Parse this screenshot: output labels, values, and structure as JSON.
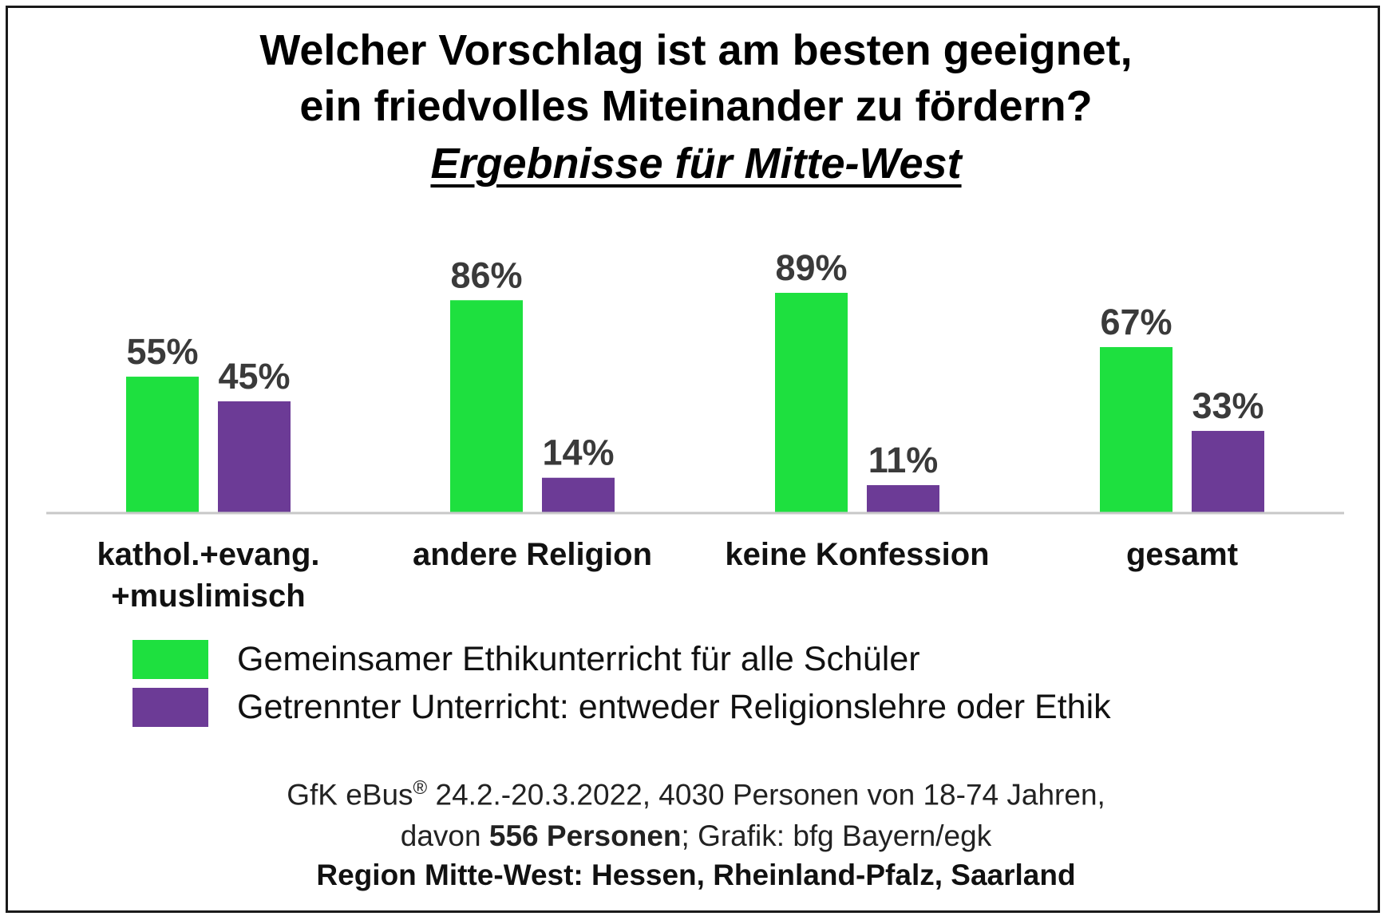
{
  "title_line1": "Welcher Vorschlag ist am besten geeignet,",
  "title_line2": "ein friedvolles Miteinander zu fördern?",
  "subtitle": "Ergebnisse für Mitte-West",
  "chart_data": {
    "type": "bar",
    "title": "Welcher Vorschlag ist am besten geeignet, ein friedvolles Miteinander zu fördern?",
    "subtitle": "Ergebnisse für Mitte-West",
    "categories": [
      [
        "kathol.+evang.",
        "+muslimisch"
      ],
      [
        "andere Religion"
      ],
      [
        "keine Konfession"
      ],
      [
        "gesamt"
      ]
    ],
    "series": [
      {
        "name": "Gemeinsamer Ethikunterricht  für alle Schüler",
        "color": "#1ee03f",
        "values": [
          55,
          86,
          89,
          67
        ]
      },
      {
        "name": "Getrennter Unterricht: entweder Religionslehre oder Ethik",
        "color": "#6c3b96",
        "values": [
          45,
          14,
          11,
          33
        ]
      }
    ],
    "value_suffix": "%",
    "ylim": [
      0,
      100
    ],
    "grid": false,
    "legend_position": "bottom-left"
  },
  "legend": [
    {
      "label": "Gemeinsamer Ethikunterricht  für alle Schüler",
      "color": "#1ee03f"
    },
    {
      "label": "Getrennter Unterricht: entweder Religionslehre oder Ethik",
      "color": "#6c3b96"
    }
  ],
  "footer": {
    "line1_prefix": "GfK eBus",
    "line1_reg": "®",
    "line1_rest": " 24.2.-20.3.2022, 4030 Personen von 18-74 Jahren,",
    "line2_prefix": "davon ",
    "line2_bold": "556 Personen",
    "line2_rest": "; Grafik: bfg Bayern/egk",
    "line3": "Region Mitte-West: Hessen, Rheinland-Pfalz, Saarland"
  }
}
